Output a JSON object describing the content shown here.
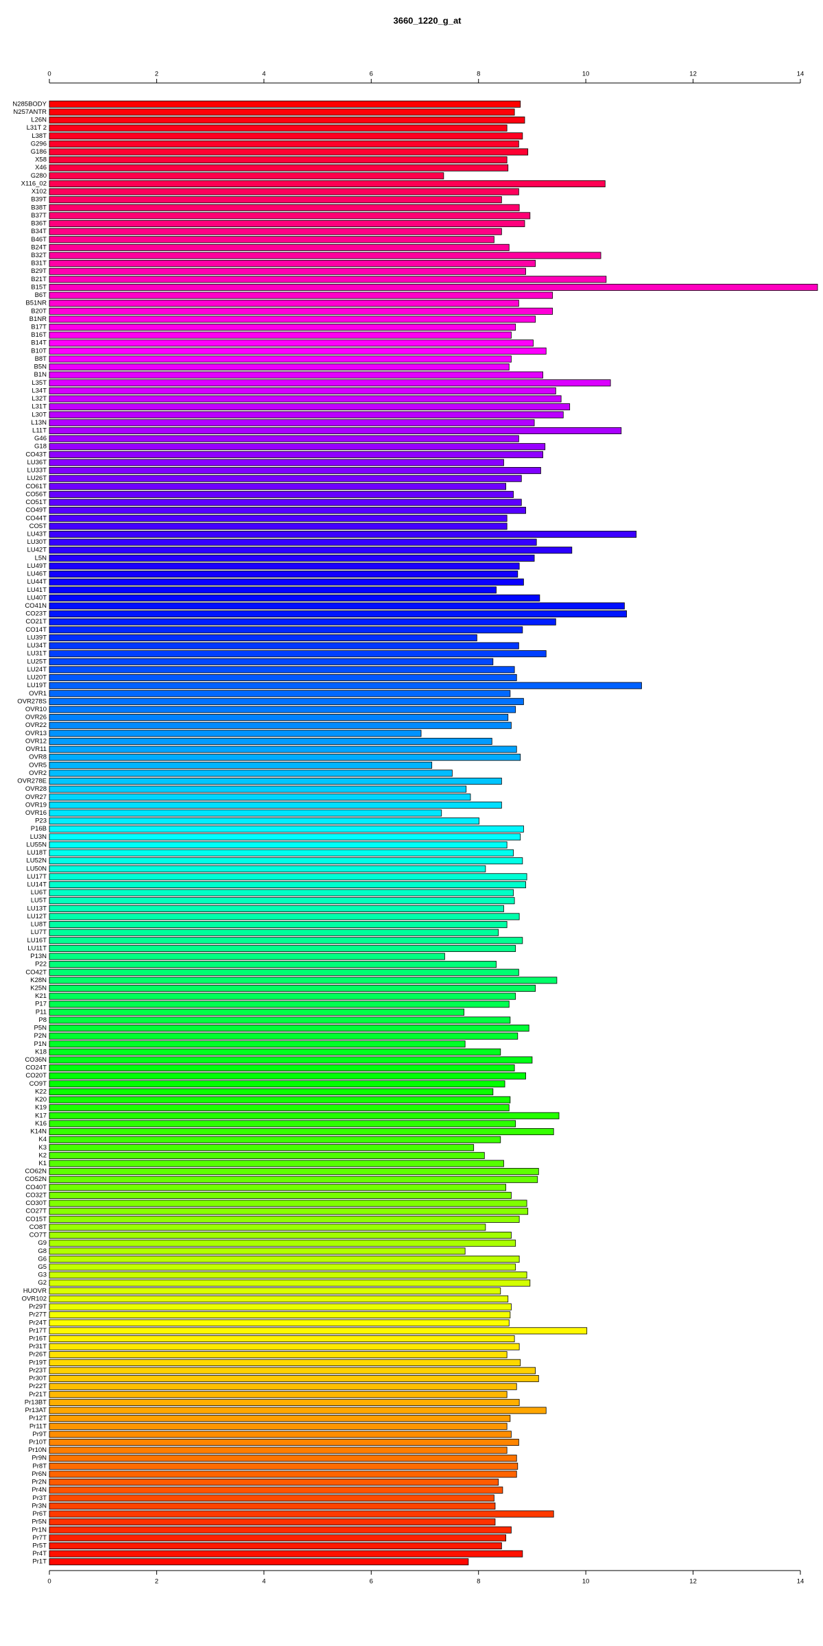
{
  "chart_data": {
    "type": "bar",
    "orientation": "horizontal",
    "title": "3660_1220_g_at",
    "categories": [
      "N285BODY",
      "N257ANTR",
      "L26N",
      "L31T 2",
      "L38T",
      "G296",
      "G186",
      "X58",
      "X46",
      "G280",
      "X116_02",
      "X102",
      "B39T",
      "B38T",
      "B37T",
      "B36T",
      "B34T",
      "B46T",
      "B24T",
      "B32T",
      "B31T",
      "B29T",
      "B21T",
      "B15T",
      "B6T",
      "B51NR",
      "B20T",
      "B1NR",
      "B17T",
      "B16T",
      "B14T",
      "B10T",
      "B8T",
      "B5N",
      "B1N",
      "L35T",
      "L34T",
      "L32T",
      "L31T",
      "L30T",
      "L13N",
      "L11T",
      "G46",
      "G18",
      "CO43T",
      "LU36T",
      "LU33T",
      "LU26T",
      "CO61T",
      "CO56T",
      "CO51T",
      "CO49T",
      "CO44T",
      "CO5T",
      "LU43T",
      "LU30T",
      "LU42T",
      "L5N",
      "LU49T",
      "LU46T",
      "LU44T",
      "LU41T",
      "LU40T",
      "CO41N",
      "CO23T",
      "CO21T",
      "CO14T",
      "LU39T",
      "LU34T",
      "LU31T",
      "LU25T",
      "LU24T",
      "LU20T",
      "LU19T",
      "OVR1",
      "OVR278S",
      "OVR10",
      "OVR26",
      "OVR22",
      "OVR13",
      "OVR12",
      "OVR11",
      "OVR8",
      "OVR5",
      "OVR2",
      "OVR278E",
      "OVR28",
      "OVR27",
      "OVR19",
      "OVR16",
      "P23",
      "P16B",
      "LU3N",
      "LU55N",
      "LU18T",
      "LU52N",
      "LU50N",
      "LU17T",
      "LU14T",
      "LU6T",
      "LU5T",
      "LU13T",
      "LU12T",
      "LU8T",
      "LU7T",
      "LU16T",
      "LU11T",
      "P13N",
      "P22",
      "CO42T",
      "K28N",
      "K25N",
      "K21",
      "P17",
      "P11",
      "P8",
      "P5N",
      "P2N",
      "P1N",
      "K18",
      "CO36N",
      "CO24T",
      "CO20T",
      "CO9T",
      "K22",
      "K20",
      "K19",
      "K17",
      "K16",
      "K14N",
      "K4",
      "K3",
      "K2",
      "K1",
      "CO62N",
      "CO52N",
      "CO40T",
      "CO32T",
      "CO30T",
      "CO27T",
      "CO15T",
      "CO8T",
      "CO7T",
      "G9",
      "G8",
      "G6",
      "G5",
      "G3",
      "G2",
      "HUOVR",
      "OVR102",
      "Pr29T",
      "Pr27T",
      "Pr24T",
      "Pr17T",
      "Pr16T",
      "Pr31T",
      "Pr26T",
      "Pr19T",
      "Pr23T",
      "Pr30T",
      "Pr22T",
      "Pr21T",
      "Pr13BT",
      "Pr13AT",
      "Pr12T",
      "Pr11T",
      "Pr9T",
      "Pr10T",
      "Pr10N",
      "Pr9N",
      "Pr8T",
      "Pr6N",
      "Pr2N",
      "Pr4N",
      "Pr3T",
      "Pr3N",
      "Pr6T",
      "Pr5N",
      "Pr1N",
      "Pr7T",
      "Pr5T",
      "Pr4T",
      "Pr1T"
    ],
    "values": [
      8.78,
      8.67,
      8.86,
      8.53,
      8.82,
      8.75,
      8.92,
      8.53,
      8.55,
      7.35,
      10.36,
      8.75,
      8.43,
      8.76,
      8.96,
      8.86,
      8.43,
      8.29,
      8.57,
      10.28,
      9.06,
      8.88,
      10.38,
      14.32,
      9.38,
      8.75,
      9.38,
      9.06,
      8.69,
      8.61,
      9.02,
      9.26,
      8.61,
      8.57,
      9.2,
      10.46,
      9.44,
      9.54,
      9.7,
      9.58,
      9.04,
      10.66,
      8.75,
      9.24,
      9.2,
      8.47,
      9.16,
      8.8,
      8.51,
      8.65,
      8.8,
      8.88,
      8.53,
      8.53,
      10.94,
      9.08,
      9.74,
      9.04,
      8.76,
      8.73,
      8.84,
      8.33,
      9.14,
      10.72,
      10.76,
      9.44,
      8.82,
      7.97,
      8.75,
      9.26,
      8.27,
      8.67,
      8.71,
      11.04,
      8.59,
      8.84,
      8.69,
      8.55,
      8.61,
      6.93,
      8.25,
      8.71,
      8.78,
      7.13,
      7.51,
      8.43,
      7.77,
      7.85,
      8.43,
      7.31,
      8.01,
      8.84,
      8.78,
      8.53,
      8.65,
      8.82,
      8.13,
      8.9,
      8.88,
      8.65,
      8.67,
      8.47,
      8.76,
      8.53,
      8.37,
      8.82,
      8.69,
      7.37,
      8.33,
      8.75,
      9.46,
      9.06,
      8.69,
      8.57,
      7.73,
      8.59,
      8.94,
      8.73,
      7.75,
      8.41,
      9.0,
      8.67,
      8.88,
      8.49,
      8.27,
      8.59,
      8.57,
      9.5,
      8.69,
      9.4,
      8.41,
      7.91,
      8.11,
      8.47,
      9.12,
      9.1,
      8.51,
      8.61,
      8.9,
      8.92,
      8.76,
      8.13,
      8.61,
      8.69,
      7.75,
      8.76,
      8.69,
      8.9,
      8.96,
      8.41,
      8.55,
      8.61,
      8.59,
      8.57,
      10.02,
      8.67,
      8.76,
      8.53,
      8.78,
      9.06,
      9.12,
      8.71,
      8.53,
      8.76,
      9.26,
      8.59,
      8.53,
      8.61,
      8.75,
      8.53,
      8.71,
      8.73,
      8.71,
      8.37,
      8.45,
      8.29,
      8.31,
      9.4,
      8.31,
      8.61,
      8.51,
      8.43,
      8.82,
      7.81
    ],
    "palette": "rainbow",
    "xlim": [
      0,
      14
    ],
    "xticks": [
      0,
      2,
      4,
      6,
      8,
      10,
      12,
      14
    ]
  }
}
